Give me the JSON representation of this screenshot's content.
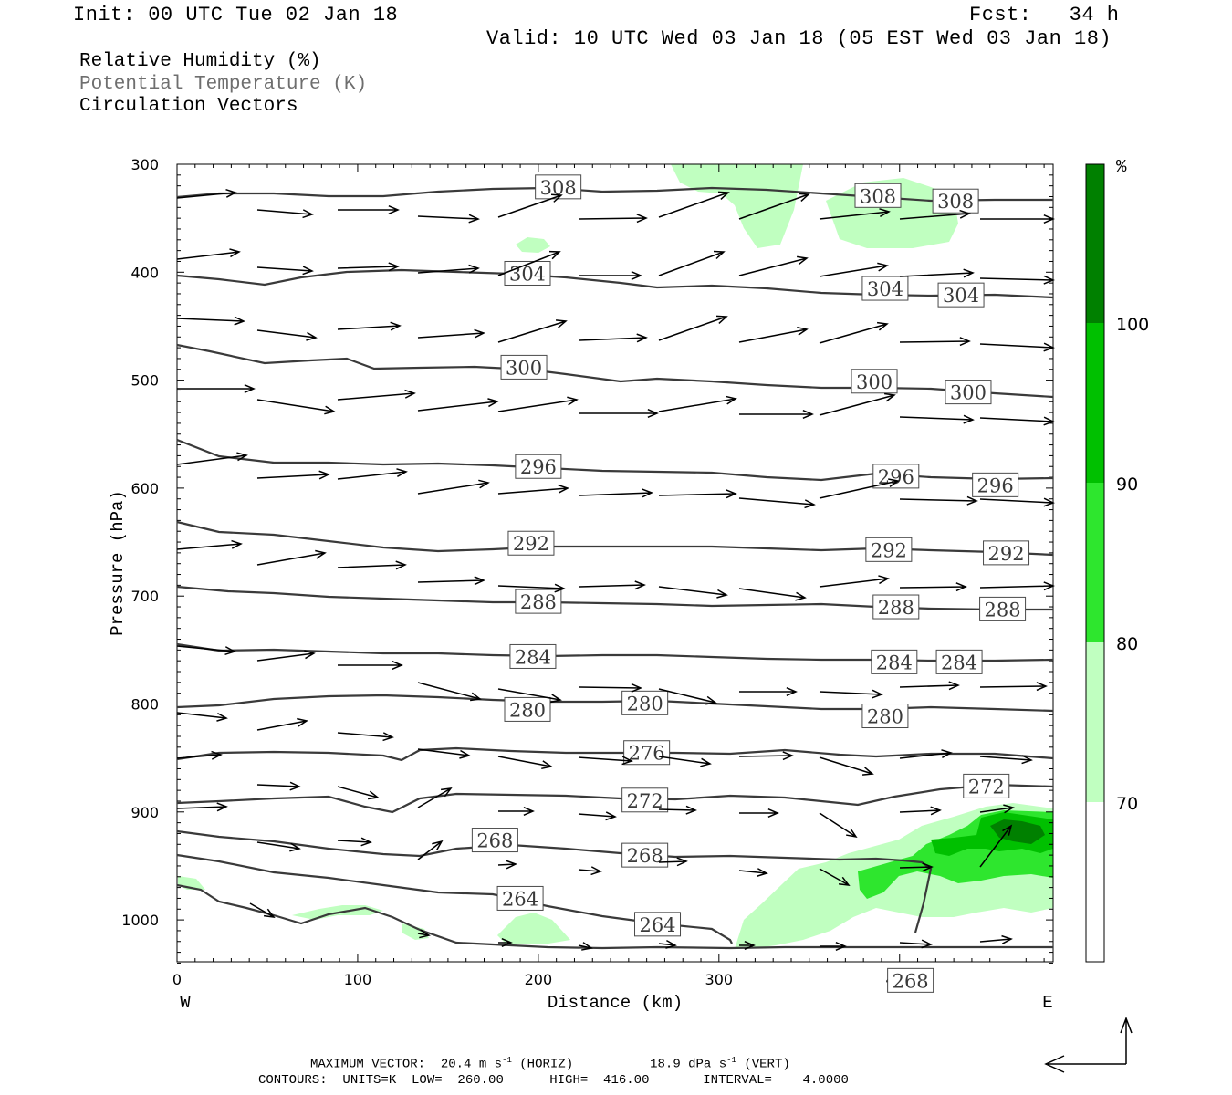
{
  "header": {
    "init": "Init: 00 UTC Tue 02 Jan 18",
    "fcst": "Fcst:   34 h",
    "valid": "Valid: 10 UTC Wed 03 Jan 18 (05 EST Wed 03 Jan 18)"
  },
  "legend": {
    "rh": "Relative Humidity (%)",
    "theta": "Potential Temperature (K)",
    "vectors": "Circulation Vectors"
  },
  "footer": {
    "max_label": "MAXIMUM VECTOR:",
    "horiz_val": "20.4 m s",
    "horiz_unit": "(HORIZ)",
    "vert_val": "18.9 dPa s",
    "vert_unit": "(VERT)",
    "exp": "-1",
    "contours": "CONTOURS:  UNITS=K  LOW=  260.00      HIGH=  416.00       INTERVAL=    4.0000"
  },
  "colors": {
    "rh70": "#c0ffc0",
    "rh80": "#2ee62e",
    "rh90": "#00c000",
    "rh100": "#008000",
    "contour": "#3a3a3a",
    "grey_text": "#6e6e6e"
  },
  "chart_data": {
    "type": "cross-section",
    "xlabel": "Distance (km)",
    "ylabel": "Pressure (hPa)",
    "xlim": [
      0,
      485
    ],
    "ylim": [
      1040,
      300
    ],
    "x_ticks": [
      0,
      100,
      200,
      300,
      400
    ],
    "y_ticks": [
      300,
      400,
      500,
      600,
      700,
      800,
      900,
      1000
    ],
    "left_end": "W",
    "right_end": "E",
    "colorbar": {
      "unit": "%",
      "levels": [
        70,
        80,
        90,
        100
      ]
    },
    "contour_labels": [
      {
        "value": "308",
        "x": 211,
        "p": 321
      },
      {
        "value": "308",
        "x": 388,
        "p": 329
      },
      {
        "value": "308",
        "x": 431,
        "p": 334
      },
      {
        "value": "304",
        "x": 194,
        "p": 401
      },
      {
        "value": "304",
        "x": 392,
        "p": 415
      },
      {
        "value": "304",
        "x": 434,
        "p": 421
      },
      {
        "value": "300",
        "x": 192,
        "p": 488
      },
      {
        "value": "300",
        "x": 386,
        "p": 501
      },
      {
        "value": "300",
        "x": 438,
        "p": 511
      },
      {
        "value": "296",
        "x": 200,
        "p": 580
      },
      {
        "value": "296",
        "x": 398,
        "p": 589
      },
      {
        "value": "296",
        "x": 453,
        "p": 597
      },
      {
        "value": "292",
        "x": 196,
        "p": 651
      },
      {
        "value": "292",
        "x": 394,
        "p": 657
      },
      {
        "value": "292",
        "x": 459,
        "p": 660
      },
      {
        "value": "288",
        "x": 200,
        "p": 705
      },
      {
        "value": "288",
        "x": 398,
        "p": 710
      },
      {
        "value": "288",
        "x": 457,
        "p": 712
      },
      {
        "value": "284",
        "x": 197,
        "p": 756
      },
      {
        "value": "284",
        "x": 397,
        "p": 761
      },
      {
        "value": "284",
        "x": 433,
        "p": 761
      },
      {
        "value": "280",
        "x": 194,
        "p": 805
      },
      {
        "value": "280",
        "x": 259,
        "p": 799
      },
      {
        "value": "280",
        "x": 392,
        "p": 811
      },
      {
        "value": "276",
        "x": 260,
        "p": 845
      },
      {
        "value": "272",
        "x": 259,
        "p": 889
      },
      {
        "value": "272",
        "x": 448,
        "p": 876
      },
      {
        "value": "268",
        "x": 176,
        "p": 926
      },
      {
        "value": "268",
        "x": 259,
        "p": 940
      },
      {
        "value": "268",
        "x": 406,
        "p": 1056
      },
      {
        "value": "264",
        "x": 190,
        "p": 980
      },
      {
        "value": "264",
        "x": 266,
        "p": 1004
      }
    ]
  }
}
